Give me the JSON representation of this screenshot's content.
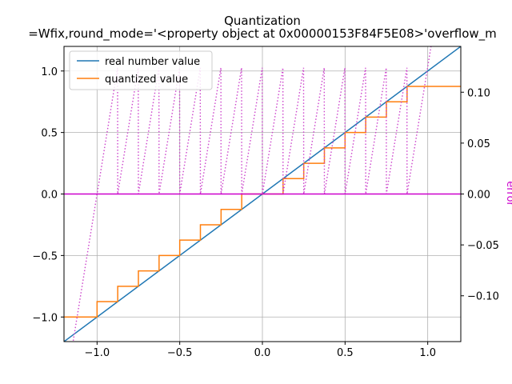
{
  "chart_data": {
    "type": "line",
    "title": "Quantization",
    "subtitle": "=Wfix,round_mode='<property object at 0x00000153F84F5E08>'overflow_m",
    "xlabel": "",
    "ylabel": "",
    "y2label": "error",
    "xlim": [
      -1.2,
      1.2
    ],
    "ylim": [
      -1.2,
      1.2
    ],
    "y2lim": [
      -0.145,
      0.145
    ],
    "xticks": [
      -1.0,
      -0.5,
      0.0,
      0.5,
      1.0
    ],
    "xtick_labels": [
      "−1.0",
      "−0.5",
      "0.0",
      "0.5",
      "1.0"
    ],
    "yticks": [
      -1.0,
      -0.5,
      0.0,
      0.5,
      1.0
    ],
    "ytick_labels": [
      "−1.0",
      "−0.5",
      "0.0",
      "0.5",
      "1.0"
    ],
    "y2ticks": [
      -0.1,
      -0.05,
      0.0,
      0.05,
      0.1
    ],
    "y2tick_labels": [
      "−0.10",
      "−0.05",
      "0.00",
      "0.05",
      "0.10"
    ],
    "grid": true,
    "legend_position": "upper-left",
    "quantization_step": 0.125,
    "quantized_range": [
      -1.0,
      0.875
    ],
    "series": [
      {
        "name": "real number value",
        "color": "#1f77b4",
        "style": "solid",
        "points": [
          [
            -1.2,
            -1.2
          ],
          [
            1.2,
            1.2
          ]
        ]
      },
      {
        "name": "quantized value",
        "color": "#ff7f0e",
        "style": "step",
        "x": [
          -1.2,
          -1.0,
          -0.875,
          -0.75,
          -0.625,
          -0.5,
          -0.375,
          -0.25,
          -0.125,
          0.0,
          0.125,
          0.25,
          0.375,
          0.5,
          0.625,
          0.75,
          0.875,
          1.2
        ],
        "y": [
          -1.0,
          -0.875,
          -0.75,
          -0.625,
          -0.5,
          -0.375,
          -0.25,
          -0.125,
          0.0,
          0.0,
          0.125,
          0.25,
          0.375,
          0.5,
          0.625,
          0.75,
          0.875,
          0.875
        ]
      },
      {
        "color": "#cc44cc",
        "style": "dotted",
        "axis": "right",
        "description": "error (real - quantized), sawtooth per step"
      },
      {
        "color": "#cc00cc",
        "style": "solid",
        "axis": "right",
        "points": [
          [
            -1.2,
            0.0
          ],
          [
            1.2,
            0.0
          ]
        ]
      }
    ]
  }
}
